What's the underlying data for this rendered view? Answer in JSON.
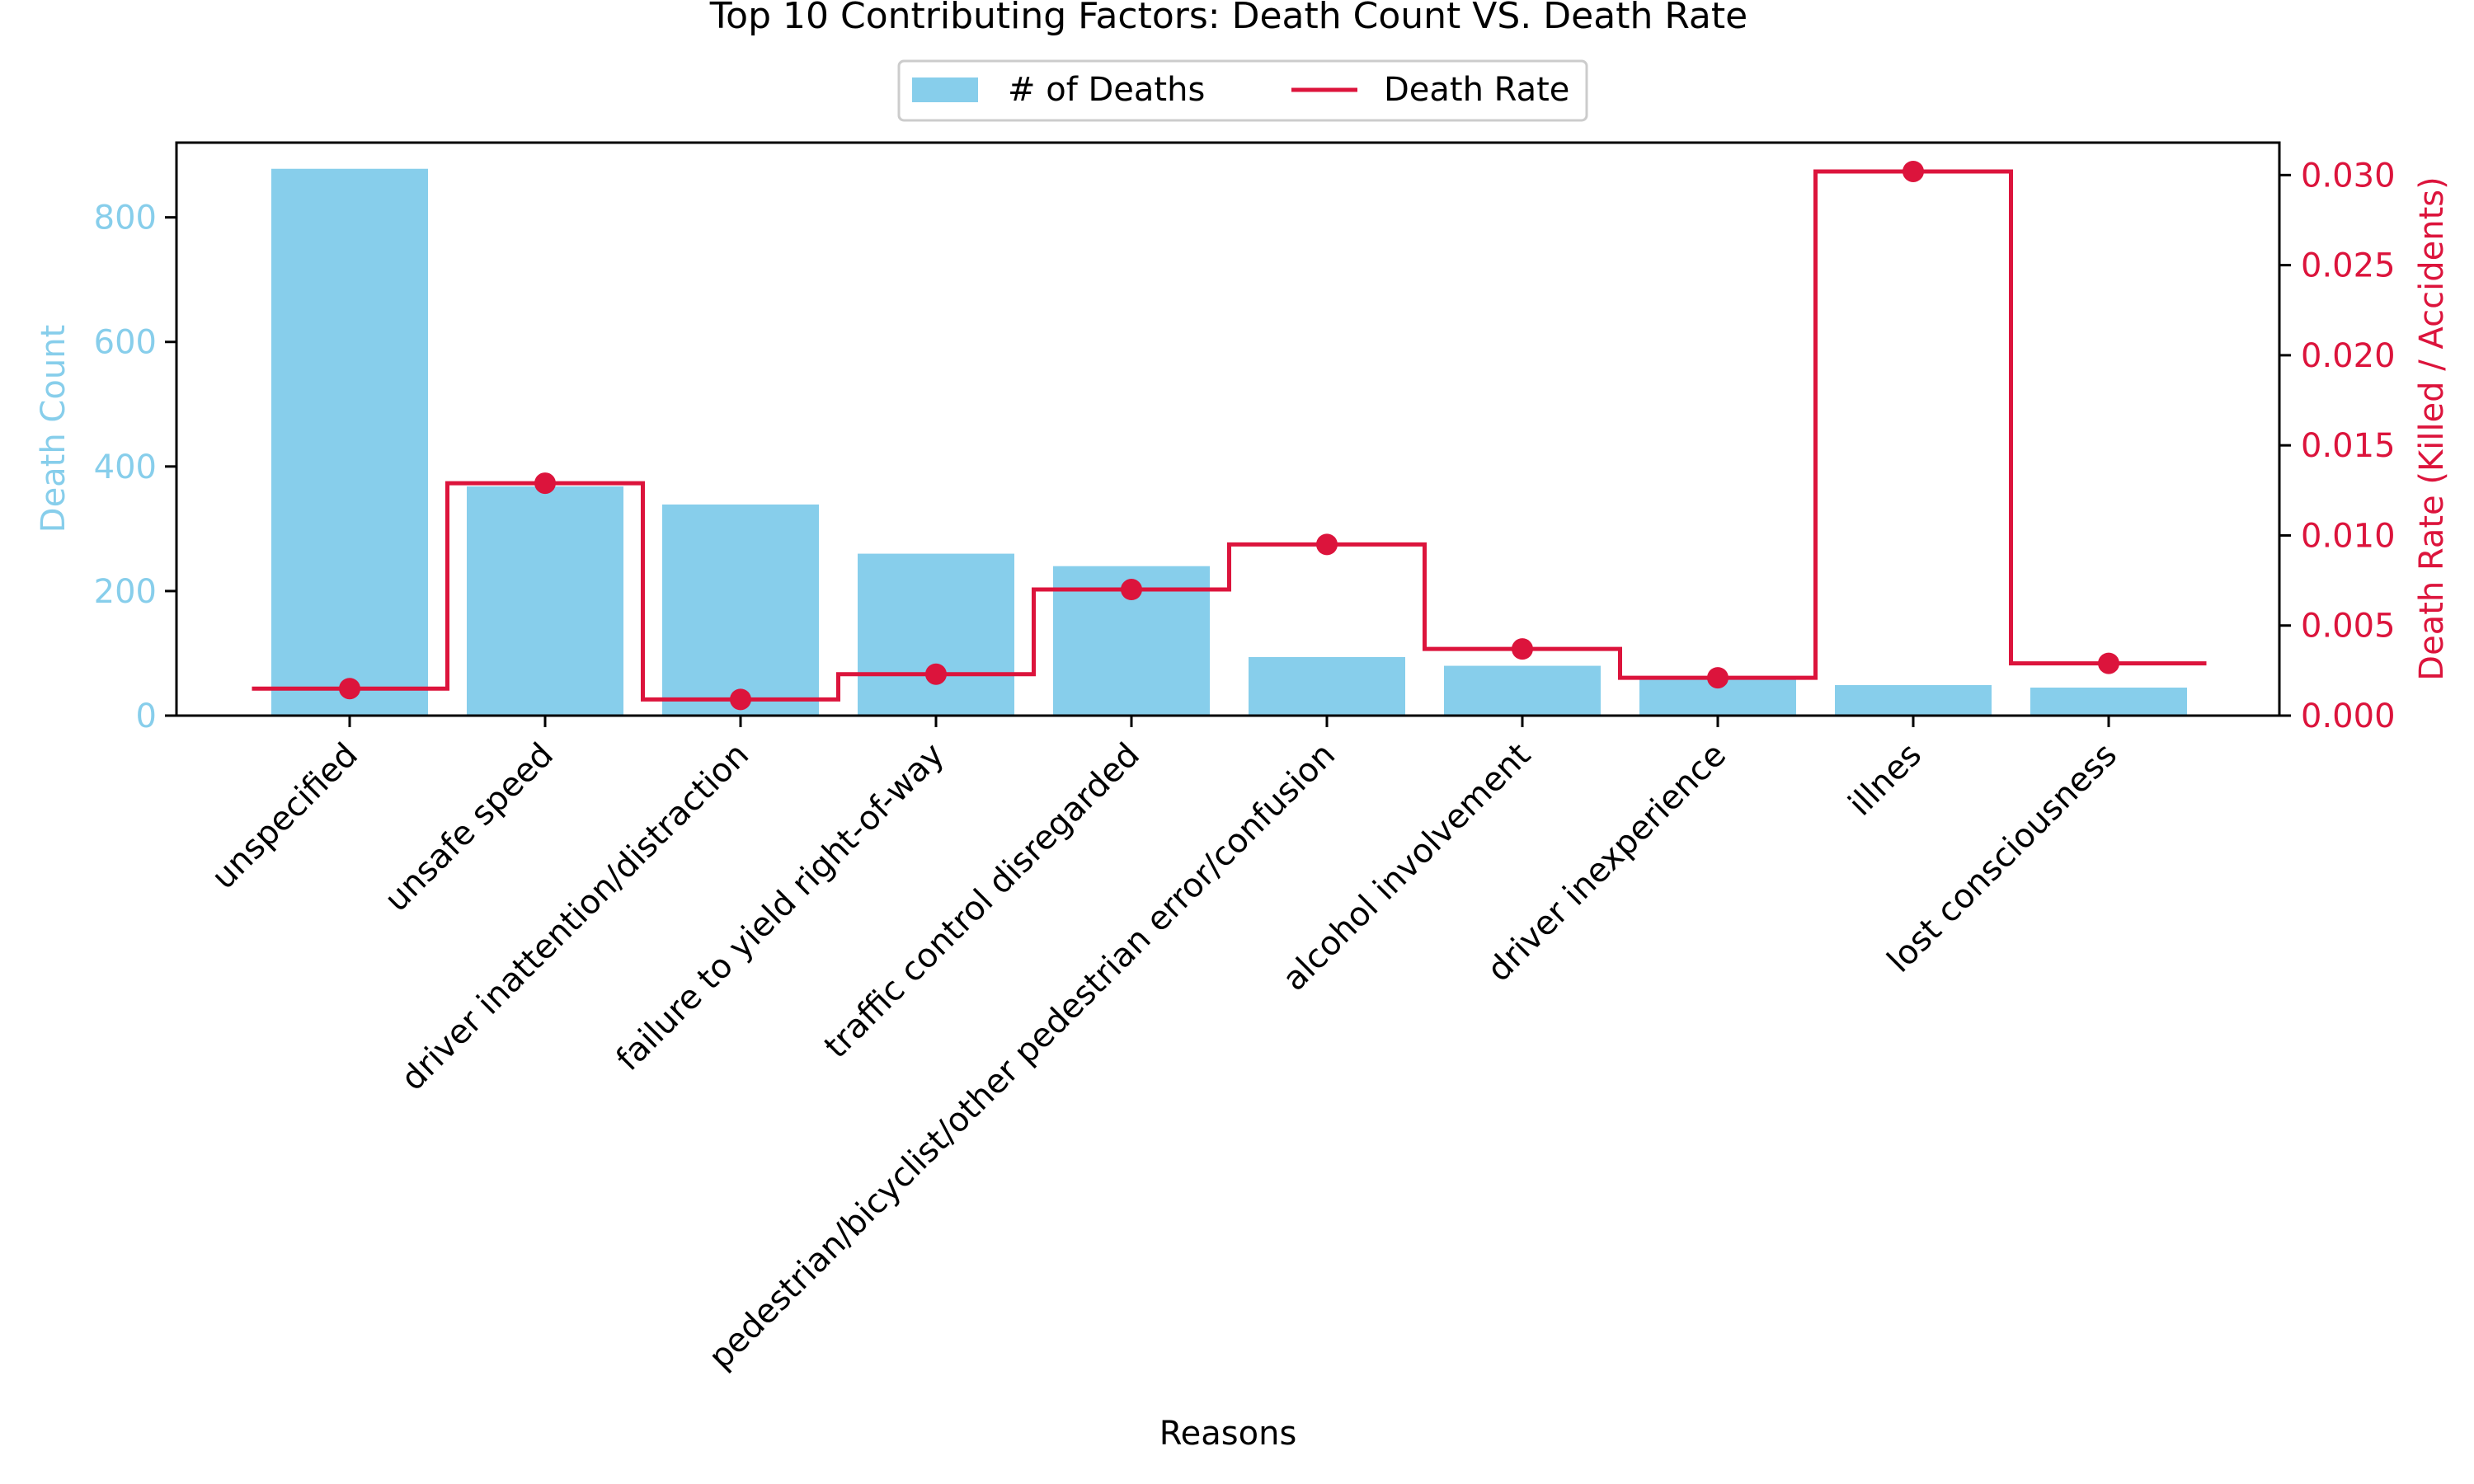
{
  "chart_data": {
    "type": "bar",
    "title": "Top 10 Contributing Factors: Death Count VS. Death Rate",
    "xlabel": "Reasons",
    "categories": [
      "unspecified",
      "unsafe speed",
      "driver inattention/distraction",
      "failure to yield right-of-way",
      "traffic control disregarded",
      "pedestrian/bicyclist/other pedestrian error/confusion",
      "alcohol involvement",
      "driver inexperience",
      "illnes",
      "lost consciousness"
    ],
    "series": [
      {
        "name": "# of Deaths",
        "type": "bar",
        "axis": "left",
        "color": "#87ceeb",
        "values": [
          878,
          368,
          339,
          260,
          240,
          94,
          80,
          63,
          49,
          45
        ]
      },
      {
        "name": "Death Rate",
        "type": "step-line",
        "axis": "right",
        "color": "#dc143c",
        "values": [
          0.0015,
          0.0129,
          0.0009,
          0.0023,
          0.007,
          0.0095,
          0.0037,
          0.0021,
          0.0302,
          0.0029
        ]
      }
    ],
    "y_left": {
      "label": "Death Count",
      "color": "#87ceeb",
      "lim": [
        0,
        920
      ],
      "ticks": [
        0,
        200,
        400,
        600,
        800
      ],
      "tick_labels": [
        "0",
        "200",
        "400",
        "600",
        "800"
      ]
    },
    "y_right": {
      "label": "Death Rate (Killed / Accidents)",
      "color": "#dc143c",
      "lim": [
        0,
        0.0318
      ],
      "ticks": [
        0,
        0.005,
        0.01,
        0.015,
        0.02,
        0.025,
        0.03
      ],
      "tick_labels": [
        "0.000",
        "0.005",
        "0.010",
        "0.015",
        "0.020",
        "0.025",
        "0.030"
      ]
    },
    "legend": {
      "placement": "top-center",
      "entries": [
        "# of Deaths",
        "Death Rate"
      ]
    },
    "grid": false
  }
}
